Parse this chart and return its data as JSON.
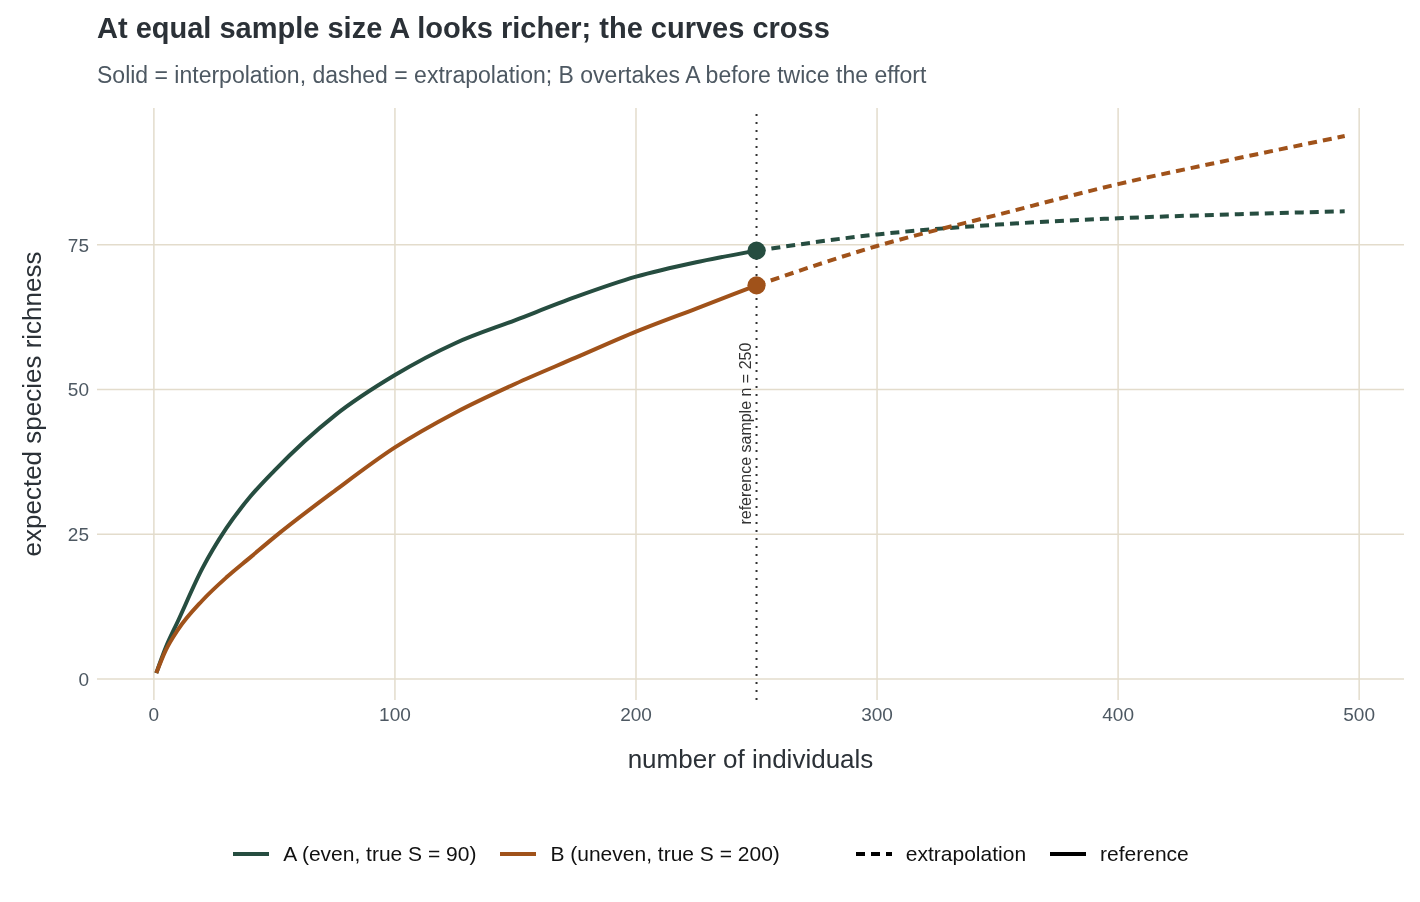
{
  "chart_data": {
    "type": "line",
    "title": "At equal sample size A looks richer; the curves cross",
    "subtitle": "Solid = interpolation, dashed = extrapolation; B overtakes A before twice the effort",
    "xlabel": "number of individuals",
    "ylabel": "expected species richness",
    "xlim": [
      -23.6,
      518.6
    ],
    "xticks": [
      0,
      100,
      200,
      300,
      400,
      500
    ],
    "ylim": [
      -3.65,
      98.65
    ],
    "yticks": [
      0,
      25,
      50,
      75
    ],
    "grid": true,
    "legend": "bottom",
    "series": [
      {
        "name": "A (even, true S = 90)",
        "color": "#264d40",
        "line_style": "solid",
        "x": [
          1,
          5,
          10,
          20,
          30,
          40,
          50,
          75,
          100,
          125,
          150,
          175,
          200,
          225,
          250
        ],
        "values": [
          1,
          5.5,
          10,
          19,
          26,
          31.5,
          36,
          45.5,
          52.5,
          58,
          62,
          66,
          69.5,
          72,
          74
        ]
      },
      {
        "name": "B (uneven, true S = 200)",
        "color": "#a0521a",
        "line_style": "solid",
        "x": [
          1,
          5,
          10,
          20,
          30,
          40,
          50,
          75,
          100,
          125,
          150,
          175,
          200,
          225,
          250
        ],
        "values": [
          1,
          5,
          8.5,
          13.5,
          17.5,
          21,
          24.5,
          32.5,
          40,
          46,
          51,
          55.5,
          60,
          64,
          68
        ]
      },
      {
        "color": "#264d40",
        "line_style": "dashed",
        "x": [
          250,
          300,
          350,
          400,
          450,
          494
        ],
        "values": [
          74,
          76.8,
          78.5,
          79.6,
          80.3,
          80.8
        ]
      },
      {
        "color": "#a0521a",
        "line_style": "dashed",
        "x": [
          250,
          300,
          350,
          400,
          450,
          494
        ],
        "values": [
          68,
          74.8,
          80.2,
          85.5,
          90,
          93.8
        ]
      },
      {
        "type": "scatter",
        "marker": "circle",
        "colors": [
          "#264d40",
          "#a0521a"
        ],
        "x": [
          250,
          250
        ],
        "values": [
          74,
          68
        ]
      }
    ],
    "ref_lines": [
      {
        "axis": "x",
        "value": 250,
        "label": "reference sample n = 250",
        "color": "#333333",
        "line_style": "dotted"
      }
    ],
    "annotations": [
      "extrapolation",
      "reference"
    ]
  }
}
